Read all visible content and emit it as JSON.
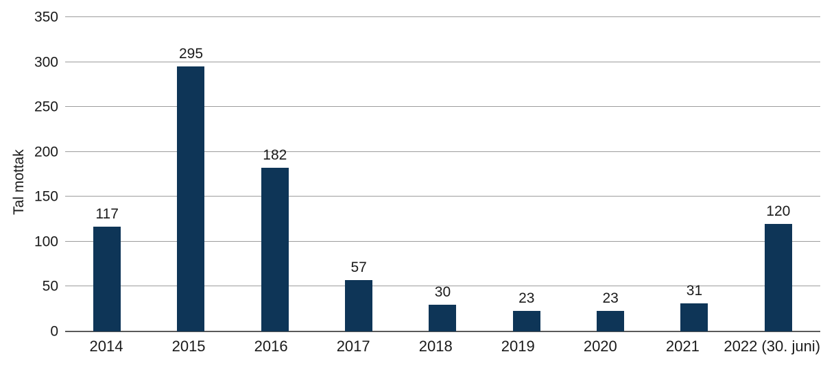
{
  "chart_data": {
    "type": "bar",
    "title": "",
    "xlabel": "",
    "ylabel": "Tal mottak",
    "categories": [
      "2014",
      "2015",
      "2016",
      "2017",
      "2018",
      "2019",
      "2020",
      "2021",
      "2022 (30. juni)"
    ],
    "values": [
      117,
      295,
      182,
      57,
      30,
      23,
      23,
      31,
      120
    ],
    "data_labels": [
      117,
      295,
      182,
      57,
      30,
      23,
      23,
      31,
      120
    ],
    "ylim": [
      0,
      350
    ],
    "yticks": [
      0,
      50,
      100,
      150,
      200,
      250,
      300,
      350
    ],
    "grid": true,
    "legend": false,
    "bar_color": "#0E3557"
  },
  "colors": {
    "bar": "#0E3557",
    "gridline": "#9C9C9C",
    "axis_line": "#595959",
    "text": "#1A1A1A",
    "background": "#FFFFFF"
  }
}
